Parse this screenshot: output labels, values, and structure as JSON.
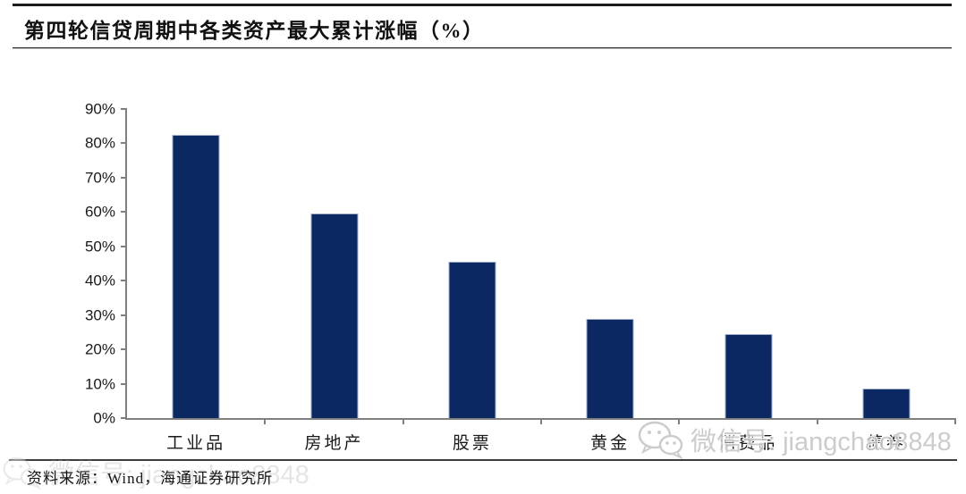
{
  "header": {
    "title": "第四轮信贷周期中各类资产最大累计涨幅（%）"
  },
  "chart_data": {
    "type": "bar",
    "title": "第四轮信贷周期中各类资产最大累计涨幅（%）",
    "categories": [
      "工业品",
      "房地产",
      "股票",
      "黄金",
      "消费品",
      "债券"
    ],
    "values": [
      82.5,
      59.5,
      45.5,
      29,
      24.5,
      8.5
    ],
    "xlabel": "",
    "ylabel": "",
    "ylim": [
      0,
      90
    ],
    "ytick_step": 10,
    "ytick_labels": [
      "0%",
      "10%",
      "20%",
      "30%",
      "40%",
      "50%",
      "60%",
      "70%",
      "80%",
      "90%"
    ],
    "grid": false,
    "legend": false,
    "bar_color": "#0c2862",
    "axis_color": "#7f7f7f"
  },
  "footer": {
    "source": "资料来源：Wind，海通证券研究所"
  },
  "watermark": {
    "icon": "wechat-icon",
    "text": "微信号: jiangchao8848",
    "color": "#c6c6c6"
  }
}
